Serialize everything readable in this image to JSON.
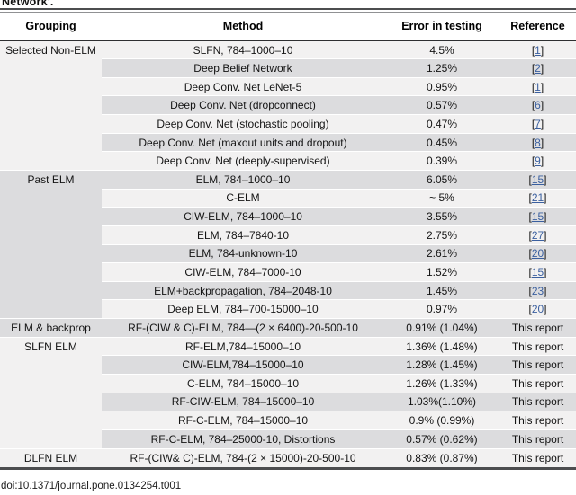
{
  "caption_fragment": "Network'.",
  "doi": "doi:10.1371/journal.pone.0134254.t001",
  "colors": {
    "row_light": "#f2f1f1",
    "row_dark": "#dcdcde",
    "rule_dark": "#4c4d4f",
    "link_blue": "#3a5f9f"
  },
  "table": {
    "headers": [
      "Grouping",
      "Method",
      "Error in testing",
      "Reference"
    ],
    "groups": [
      {
        "label": "Selected Non-ELM",
        "rows": [
          {
            "method": "SLFN, 784–1000–10",
            "error": "4.5%",
            "ref": "1",
            "ref_link": true
          },
          {
            "method": "Deep Belief Network",
            "error": "1.25%",
            "ref": "2",
            "ref_link": true
          },
          {
            "method": "Deep Conv. Net LeNet-5",
            "error": "0.95%",
            "ref": "1",
            "ref_link": true
          },
          {
            "method": "Deep Conv. Net (dropconnect)",
            "error": "0.57%",
            "ref": "6",
            "ref_link": true
          },
          {
            "method": "Deep Conv. Net (stochastic pooling)",
            "error": "0.47%",
            "ref": "7",
            "ref_link": true
          },
          {
            "method": "Deep Conv. Net (maxout units and dropout)",
            "error": "0.45%",
            "ref": "8",
            "ref_link": true
          },
          {
            "method": "Deep Conv. Net (deeply-supervised)",
            "error": "0.39%",
            "ref": "9",
            "ref_link": true
          }
        ]
      },
      {
        "label": "Past ELM",
        "rows": [
          {
            "method": "ELM, 784–1000–10",
            "error": "6.05%",
            "ref": "15",
            "ref_link": true
          },
          {
            "method": "C-ELM",
            "error": "~ 5%",
            "ref": "21",
            "ref_link": true
          },
          {
            "method": "CIW-ELM, 784–1000–10",
            "error": "3.55%",
            "ref": "15",
            "ref_link": true
          },
          {
            "method": "ELM, 784–7840-10",
            "error": "2.75%",
            "ref": "27",
            "ref_link": true
          },
          {
            "method": "ELM, 784-unknown-10",
            "error": "2.61%",
            "ref": "20",
            "ref_link": true
          },
          {
            "method": "CIW-ELM, 784–7000-10",
            "error": "1.52%",
            "ref": "15",
            "ref_link": true
          },
          {
            "method": "ELM+backpropagation, 784–2048-10",
            "error": "1.45%",
            "ref": "23",
            "ref_link": true
          },
          {
            "method": "Deep ELM, 784–700-15000–10",
            "error": "0.97%",
            "ref": "20",
            "ref_link": true
          }
        ]
      },
      {
        "label": "ELM & backprop",
        "rows": [
          {
            "method": "RF-(CIW & C)-ELM, 784—(2 × 6400)-20-500-10",
            "error": "0.91% (1.04%)",
            "ref": "This report",
            "ref_link": false
          }
        ]
      },
      {
        "label": "SLFN ELM",
        "rows": [
          {
            "method": "RF-ELM,784–15000–10",
            "error": "1.36% (1.48%)",
            "ref": "This report",
            "ref_link": false
          },
          {
            "method": "CIW-ELM,784–15000–10",
            "error": "1.28% (1.45%)",
            "ref": "This report",
            "ref_link": false
          },
          {
            "method": "C-ELM, 784–15000–10",
            "error": "1.26% (1.33%)",
            "ref": "This report",
            "ref_link": false
          },
          {
            "method": "RF-CIW-ELM, 784–15000–10",
            "error": "1.03%(1.10%)",
            "ref": "This report",
            "ref_link": false
          },
          {
            "method": "RF-C-ELM, 784–15000–10",
            "error": "0.9% (0.99%)",
            "ref": "This report",
            "ref_link": false
          },
          {
            "method": "RF-C-ELM, 784–25000-10, Distortions",
            "error": "0.57% (0.62%)",
            "ref": "This report",
            "ref_link": false
          }
        ]
      },
      {
        "label": "DLFN ELM",
        "rows": [
          {
            "method": "RF-(CIW& C)-ELM, 784-(2 × 15000)-20-500-10",
            "error": "0.83% (0.87%)",
            "ref": "This report",
            "ref_link": false
          }
        ]
      }
    ]
  }
}
